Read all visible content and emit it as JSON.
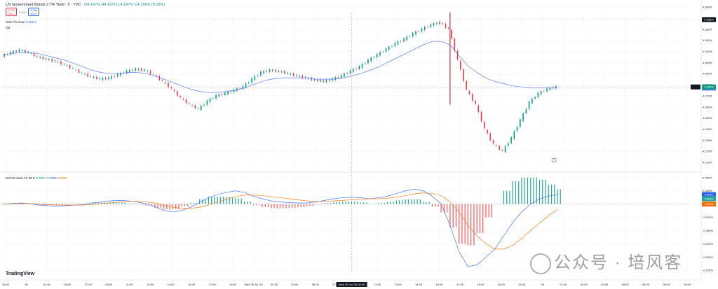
{
  "header": {
    "symbol": "US Government Bonds 2 YR Yield · 5 · TVC",
    "ohlc": "O4.197%  H4.197%  L4.197%  C4.188% (0.00%)",
    "sell_price": "4.187",
    "sell_label": "SELL",
    "spread": "0.000",
    "buy_price": "4.188",
    "buy_label": "BUY",
    "vol_label": "Vol",
    "sma_label": "SMA 70 close",
    "sma_value": "4.281%",
    "macd_label": "MACD close 12 26 9",
    "macd_v1": "-0.0001",
    "macd_v2": "0.0065",
    "macd_v3": "0.2064"
  },
  "axis": {
    "price_ticks": [
      "4.350%",
      "4.340%",
      "4.330%",
      "4.320%",
      "4.310%",
      "4.300%",
      "4.290%",
      "4.280%",
      "4.270%",
      "4.260%",
      "4.250%",
      "4.240%",
      "4.230%",
      "4.220%",
      "4.210%"
    ],
    "macd_ticks": [
      "0.050%",
      "0.025%",
      "0.000%",
      "-0.025%",
      "-0.050%",
      "-0.075%",
      "-0.100%",
      "-0.125%"
    ],
    "time_ticks": [
      "23:00",
      "28",
      "01:00",
      "06:00",
      "07:00",
      "09:00",
      "11:00",
      "13:00",
      "14:00",
      "16:00",
      "17:00",
      "19:00",
      "Wed 29 Jul '26",
      "00:35",
      "03:00",
      "06:00",
      "07:00",
      "09:00",
      "11:00",
      "13:00",
      "14:00",
      "16:00",
      "17:00",
      "19:00",
      "20:00",
      "21:00",
      "30",
      "01:00",
      "02:00",
      "03:00",
      "05:00",
      "06:00",
      "08:00",
      "09:00"
    ],
    "cursor_time": "Wed 29 Jul '26  00:35",
    "price_tags": {
      "high": "4.336%",
      "sma": "4.277%",
      "last": "4.268%",
      "cursor": "4.268%"
    },
    "macd_tags": {
      "a": "0.0021",
      "b": "0.0021",
      "c": "0.0003"
    }
  },
  "chart_data": {
    "type": "line",
    "title": "US Government Bonds 2 YR Yield · 5 · TVC",
    "series": [
      {
        "name": "US Government Bonds 2 YR Yield",
        "unit": "%",
        "x": [
          0,
          5,
          10,
          15,
          20,
          25,
          30,
          35,
          40,
          45,
          50,
          55,
          60,
          65,
          70,
          75,
          80,
          85,
          90,
          95,
          100,
          105,
          110,
          115,
          120,
          125,
          130,
          135,
          140,
          145,
          150,
          155,
          160,
          165,
          170,
          175,
          180,
          185,
          190,
          195,
          200,
          205,
          210,
          215,
          220,
          225,
          230,
          235,
          240,
          245,
          250,
          255,
          260,
          265,
          270,
          275,
          280,
          285,
          290,
          295,
          300,
          305,
          310
        ],
        "values": [
          4.306,
          4.309,
          4.311,
          4.309,
          4.305,
          4.303,
          4.301,
          4.298,
          4.294,
          4.29,
          4.287,
          4.285,
          4.286,
          4.289,
          4.292,
          4.294,
          4.293,
          4.289,
          4.283,
          4.276,
          4.268,
          4.262,
          4.258,
          4.265,
          4.27,
          4.272,
          4.275,
          4.278,
          4.285,
          4.291,
          4.293,
          4.292,
          4.29,
          4.288,
          4.286,
          4.284,
          4.283,
          4.285,
          4.288,
          4.292,
          4.296,
          4.302,
          4.307,
          4.312,
          4.317,
          4.321,
          4.326,
          4.33,
          4.334,
          4.336,
          4.33,
          4.302,
          4.275,
          4.262,
          4.24,
          4.226,
          4.22,
          4.232,
          4.248,
          4.264,
          4.272,
          4.276,
          4.278
        ]
      },
      {
        "name": "SMA 70 close",
        "x": [
          0,
          5,
          10,
          15,
          20,
          25,
          30,
          35,
          40,
          45,
          50,
          55,
          60,
          65,
          70,
          75,
          80,
          85,
          90,
          95,
          100,
          105,
          110,
          115,
          120,
          125,
          130,
          135,
          140,
          145,
          150,
          155,
          160,
          165,
          170,
          175,
          180,
          185,
          190,
          195,
          200,
          205,
          210,
          215,
          220,
          225,
          230,
          235,
          240,
          245,
          250,
          255,
          260,
          265,
          270,
          275,
          280,
          285,
          290,
          295,
          300,
          305,
          310
        ],
        "values": [
          4.307,
          4.308,
          4.309,
          4.309,
          4.308,
          4.306,
          4.304,
          4.302,
          4.299,
          4.296,
          4.293,
          4.291,
          4.29,
          4.29,
          4.291,
          4.291,
          4.29,
          4.288,
          4.285,
          4.282,
          4.279,
          4.276,
          4.274,
          4.273,
          4.273,
          4.274,
          4.275,
          4.277,
          4.28,
          4.283,
          4.285,
          4.286,
          4.286,
          4.286,
          4.286,
          4.285,
          4.285,
          4.285,
          4.286,
          4.288,
          4.29,
          4.293,
          4.296,
          4.3,
          4.304,
          4.308,
          4.312,
          4.316,
          4.319,
          4.319,
          4.316,
          4.306,
          4.297,
          4.291,
          4.286,
          4.283,
          4.281,
          4.279,
          4.278,
          4.277,
          4.277,
          4.277,
          4.277
        ]
      }
    ],
    "macd": {
      "x": [
        0,
        5,
        10,
        15,
        20,
        25,
        30,
        35,
        40,
        45,
        50,
        55,
        60,
        65,
        70,
        75,
        80,
        85,
        90,
        95,
        100,
        105,
        110,
        115,
        120,
        125,
        130,
        135,
        140,
        145,
        150,
        155,
        160,
        165,
        170,
        175,
        180,
        185,
        190,
        195,
        200,
        205,
        210,
        215,
        220,
        225,
        230,
        235,
        240,
        245,
        250,
        255,
        260,
        265,
        270,
        275,
        280,
        285,
        290,
        295,
        300,
        305,
        310
      ],
      "macd": [
        0.0,
        0.001,
        0.002,
        0.001,
        -0.002,
        -0.003,
        -0.004,
        -0.003,
        -0.002,
        -0.001,
        0.002,
        0.004,
        0.006,
        0.007,
        0.006,
        0.004,
        0.001,
        -0.005,
        -0.012,
        -0.015,
        -0.012,
        -0.006,
        0.003,
        0.012,
        0.018,
        0.022,
        0.025,
        0.022,
        0.015,
        0.01,
        0.006,
        0.004,
        0.003,
        0.002,
        0.002,
        0.004,
        0.007,
        0.01,
        0.012,
        0.013,
        0.012,
        0.01,
        0.012,
        0.015,
        0.02,
        0.025,
        0.028,
        0.025,
        0.015,
        0.0,
        -0.04,
        -0.09,
        -0.118,
        -0.115,
        -0.1,
        -0.085,
        -0.06,
        -0.035,
        -0.015,
        0.0,
        0.01,
        0.015,
        0.018
      ],
      "signal": [
        0.0,
        0.0,
        0.001,
        0.001,
        0.0,
        -0.001,
        -0.002,
        -0.002,
        -0.002,
        -0.002,
        -0.001,
        0.001,
        0.002,
        0.004,
        0.005,
        0.005,
        0.004,
        0.002,
        -0.002,
        -0.006,
        -0.008,
        -0.008,
        -0.006,
        -0.002,
        0.004,
        0.009,
        0.014,
        0.017,
        0.017,
        0.016,
        0.014,
        0.012,
        0.01,
        0.008,
        0.006,
        0.005,
        0.005,
        0.006,
        0.007,
        0.008,
        0.009,
        0.01,
        0.01,
        0.011,
        0.013,
        0.016,
        0.019,
        0.021,
        0.02,
        0.016,
        0.004,
        -0.015,
        -0.04,
        -0.06,
        -0.075,
        -0.085,
        -0.085,
        -0.078,
        -0.065,
        -0.05,
        -0.036,
        -0.022,
        -0.01
      ]
    },
    "ylim": [
      4.205,
      4.345
    ],
    "macd_ylim": [
      -0.13,
      0.055
    ],
    "grid": true,
    "cursor_x": 195
  },
  "colors": {
    "up": "#089981",
    "down": "#f23645",
    "sma": "#5b7cff",
    "macd": "#2962ff",
    "signal": "#ff6d00",
    "hist_up": "#26a69a",
    "hist_down": "#ff5252",
    "spike": "#d0021b"
  },
  "watermark": {
    "logo": "TradingView",
    "text": "公众号 · 培风客"
  }
}
